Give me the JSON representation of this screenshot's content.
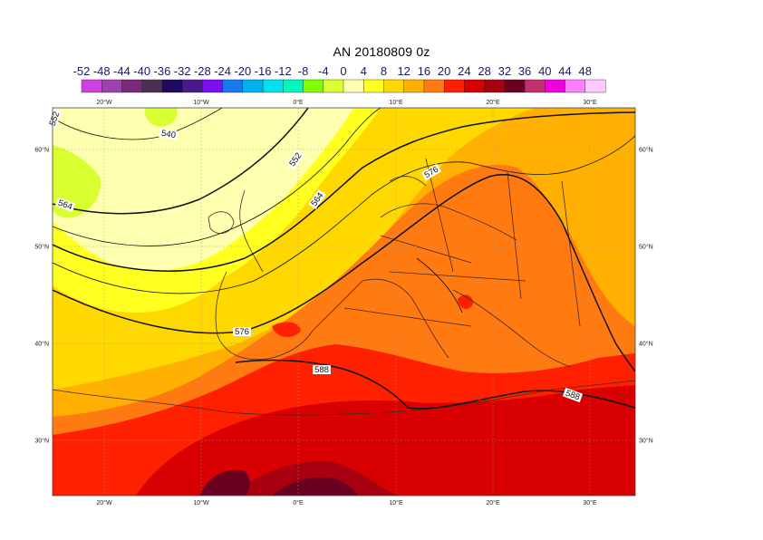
{
  "title": "AN  20180809 0z",
  "colorbar": {
    "labels": [
      "-52",
      "-48",
      "-44",
      "-40",
      "-36",
      "-32",
      "-28",
      "-24",
      "-20",
      "-16",
      "-12",
      "-8",
      "-4",
      "0",
      "4",
      "8",
      "12",
      "16",
      "20",
      "24",
      "28",
      "32",
      "36",
      "40",
      "44",
      "48"
    ],
    "colors": [
      "#d040e0",
      "#a040b0",
      "#7a2a7a",
      "#4a3050",
      "#1e0a60",
      "#4a1a8a",
      "#7a10f0",
      "#1878f0",
      "#00b0f0",
      "#00e0f0",
      "#00f8c0",
      "#80ff00",
      "#d8ff30",
      "#ffffb0",
      "#ffff20",
      "#ffd800",
      "#ffb000",
      "#ff7a10",
      "#ff2000",
      "#d80000",
      "#a80010",
      "#6a0020",
      "#c03070",
      "#f000e0",
      "#ff80ff",
      "#ffc8ff"
    ]
  },
  "axes": {
    "lon_ticks": [
      "20°W",
      "10°W",
      "0°E",
      "10°E",
      "20°E",
      "30°E"
    ],
    "lat_ticks": [
      "60°N",
      "50°N",
      "40°N",
      "30°N"
    ]
  },
  "contour_labels": [
    "552",
    "540",
    "552",
    "564",
    "564",
    "576",
    "576",
    "588",
    "588"
  ]
}
